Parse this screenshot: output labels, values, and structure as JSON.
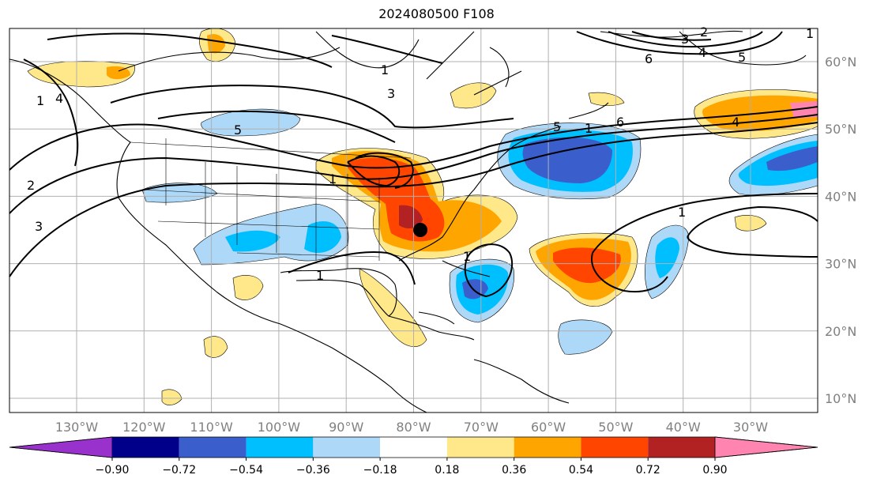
{
  "title": "2024080500 F108",
  "lon_labels": [
    "130°W",
    "120°W",
    "110°W",
    "100°W",
    "90°W",
    "80°W",
    "70°W",
    "60°W",
    "50°W",
    "40°W",
    "30°W"
  ],
  "lat_labels": [
    "60°N",
    "50°N",
    "40°N",
    "30°N",
    "20°N",
    "10°N"
  ],
  "colorbar": {
    "tick_labels": [
      "−0.90",
      "−0.72",
      "−0.54",
      "−0.36",
      "−0.18",
      "0.18",
      "0.36",
      "0.54",
      "0.72",
      "0.90"
    ],
    "colors": [
      "#9932cc",
      "#00008b",
      "#3a5fcd",
      "#00bfff",
      "#add8f7",
      "#ffffff",
      "#ffe88a",
      "#ffa500",
      "#ff4500",
      "#b22222",
      "#ff85b0"
    ]
  },
  "contour_labels": [
    "1",
    "2",
    "3",
    "1",
    "3",
    "4",
    "5",
    "1",
    "1",
    "1",
    "2",
    "3",
    "4",
    "5",
    "6",
    "5",
    "6",
    "4",
    "1",
    "1",
    "1"
  ],
  "marker": {
    "lon": -79.0,
    "lat": 35.0
  },
  "colors": {
    "grid": "#b0b0b0",
    "coast": "#000000",
    "tick_text": "#808080"
  }
}
